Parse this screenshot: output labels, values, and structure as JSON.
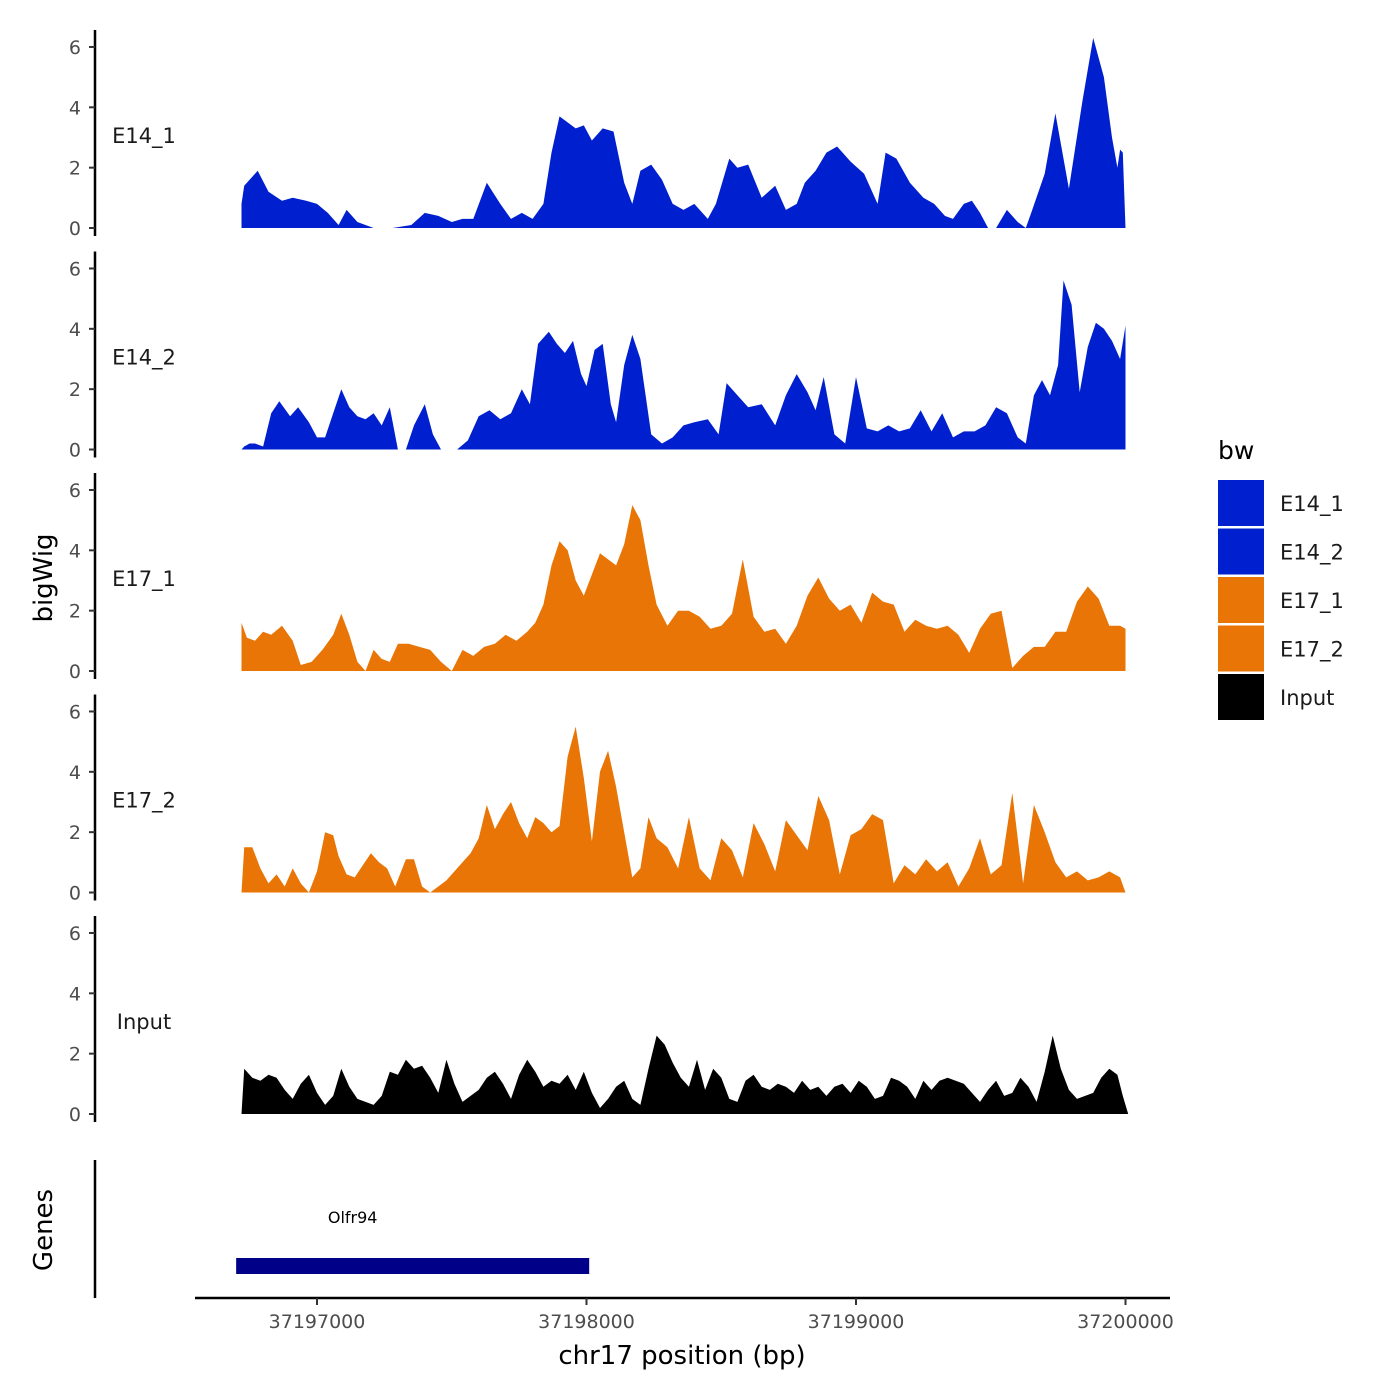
{
  "chart_data": {
    "type": "area",
    "ylabel": "bigWig",
    "xlabel": "chr17 position (bp)",
    "genes_label": "Genes",
    "ylim": [
      0,
      6.5
    ],
    "yticks": [
      0,
      2,
      4,
      6
    ],
    "xlim": [
      37196500,
      37200200
    ],
    "xticks": [
      37197000,
      37198000,
      37199000,
      37200000
    ],
    "xtick_labels": [
      "37197000",
      "37198000",
      "37199000",
      "37200000"
    ],
    "legend": {
      "title": "bw",
      "position": "right",
      "entries": [
        {
          "label": "E14_1",
          "color": "#0020D0"
        },
        {
          "label": "E14_2",
          "color": "#0020D0"
        },
        {
          "label": "E17_1",
          "color": "#E87505"
        },
        {
          "label": "E17_2",
          "color": "#E87505"
        },
        {
          "label": "Input",
          "color": "#000000"
        }
      ]
    },
    "series": [
      {
        "name": "E14_1",
        "color": "#0020D0",
        "x": [
          37196720,
          37196730,
          37196780,
          37196820,
          37196870,
          37196910,
          37196960,
          37197000,
          37197040,
          37197080,
          37197110,
          37197150,
          37197210,
          37197280,
          37197350,
          37197400,
          37197450,
          37197500,
          37197540,
          37197580,
          37197630,
          37197680,
          37197720,
          37197760,
          37197800,
          37197840,
          37197870,
          37197900,
          37197930,
          37197960,
          37197990,
          37198020,
          37198060,
          37198100,
          37198140,
          37198170,
          37198200,
          37198240,
          37198280,
          37198320,
          37198360,
          37198400,
          37198450,
          37198480,
          37198530,
          37198560,
          37198600,
          37198650,
          37198700,
          37198740,
          37198780,
          37198810,
          37198850,
          37198890,
          37198930,
          37198980,
          37199030,
          37199080,
          37199110,
          37199150,
          37199200,
          37199250,
          37199290,
          37199330,
          37199360,
          37199400,
          37199430,
          37199460,
          37199490,
          37199520,
          37199560,
          37199600,
          37199630,
          37199650,
          37199700,
          37199740,
          37199790,
          37199840,
          37199880,
          37199920,
          37199950,
          37199970,
          37199980,
          37199990,
          37200000
        ],
        "values": [
          0.8,
          1.4,
          1.9,
          1.2,
          0.9,
          1.0,
          0.9,
          0.8,
          0.5,
          0.1,
          0.6,
          0.2,
          0.0,
          0.0,
          0.1,
          0.5,
          0.4,
          0.2,
          0.3,
          0.3,
          1.5,
          0.8,
          0.3,
          0.5,
          0.3,
          0.8,
          2.5,
          3.7,
          3.5,
          3.3,
          3.4,
          2.9,
          3.3,
          3.2,
          1.5,
          0.8,
          1.9,
          2.1,
          1.6,
          0.8,
          0.6,
          0.8,
          0.3,
          0.8,
          2.3,
          2.0,
          2.1,
          1.0,
          1.4,
          0.6,
          0.8,
          1.5,
          1.9,
          2.5,
          2.7,
          2.2,
          1.8,
          0.8,
          2.5,
          2.3,
          1.5,
          1.0,
          0.8,
          0.4,
          0.3,
          0.8,
          0.9,
          0.5,
          0.0,
          0.0,
          0.6,
          0.2,
          0.0,
          0.5,
          1.8,
          3.8,
          1.3,
          4.2,
          6.3,
          5.0,
          3.0,
          2.0,
          2.6,
          2.5,
          0.0
        ]
      },
      {
        "name": "E14_2",
        "color": "#0020D0",
        "x": [
          37196720,
          37196730,
          37196750,
          37196770,
          37196800,
          37196830,
          37196860,
          37196900,
          37196930,
          37196970,
          37197000,
          37197030,
          37197060,
          37197090,
          37197120,
          37197150,
          37197180,
          37197210,
          37197240,
          37197270,
          37197300,
          37197330,
          37197360,
          37197400,
          37197430,
          37197460,
          37197490,
          37197520,
          37197560,
          37197600,
          37197640,
          37197680,
          37197720,
          37197760,
          37197790,
          37197820,
          37197860,
          37197890,
          37197920,
          37197950,
          37197980,
          37198000,
          37198030,
          37198060,
          37198090,
          37198110,
          37198140,
          37198170,
          37198200,
          37198240,
          37198280,
          37198320,
          37198360,
          37198400,
          37198450,
          37198490,
          37198520,
          37198560,
          37198600,
          37198650,
          37198700,
          37198740,
          37198780,
          37198820,
          37198850,
          37198880,
          37198920,
          37198960,
          37199000,
          37199040,
          37199080,
          37199120,
          37199160,
          37199200,
          37199240,
          37199280,
          37199320,
          37199360,
          37199400,
          37199440,
          37199480,
          37199520,
          37199560,
          37199600,
          37199630,
          37199660,
          37199690,
          37199720,
          37199750,
          37199770,
          37199800,
          37199830,
          37199860,
          37199890,
          37199920,
          37199950,
          37199980,
          37200000
        ],
        "values": [
          0.0,
          0.1,
          0.2,
          0.2,
          0.1,
          1.2,
          1.6,
          1.1,
          1.4,
          0.9,
          0.4,
          0.4,
          1.2,
          2.0,
          1.4,
          1.1,
          1.0,
          1.2,
          0.8,
          1.4,
          0.0,
          0.0,
          0.8,
          1.5,
          0.5,
          0.0,
          0.0,
          0.0,
          0.3,
          1.1,
          1.3,
          1.0,
          1.2,
          2.0,
          1.5,
          3.5,
          3.9,
          3.5,
          3.2,
          3.6,
          2.5,
          2.1,
          3.3,
          3.5,
          1.5,
          0.9,
          2.8,
          3.8,
          3.0,
          0.5,
          0.2,
          0.4,
          0.8,
          0.9,
          1.0,
          0.5,
          2.2,
          1.8,
          1.4,
          1.5,
          0.8,
          1.8,
          2.5,
          1.9,
          1.3,
          2.4,
          0.5,
          0.2,
          2.4,
          0.7,
          0.6,
          0.8,
          0.6,
          0.7,
          1.3,
          0.6,
          1.2,
          0.4,
          0.6,
          0.6,
          0.8,
          1.4,
          1.2,
          0.4,
          0.2,
          1.8,
          2.3,
          1.8,
          2.8,
          5.6,
          4.8,
          1.9,
          3.4,
          4.2,
          4.0,
          3.6,
          3.0,
          4.1
        ]
      },
      {
        "name": "E17_1",
        "color": "#E87505",
        "x": [
          37196720,
          37196740,
          37196770,
          37196800,
          37196830,
          37196870,
          37196910,
          37196940,
          37196980,
          37197020,
          37197060,
          37197090,
          37197120,
          37197150,
          37197180,
          37197210,
          37197240,
          37197270,
          37197300,
          37197340,
          37197380,
          37197420,
          37197460,
          37197500,
          37197540,
          37197580,
          37197620,
          37197660,
          37197700,
          37197740,
          37197780,
          37197810,
          37197840,
          37197870,
          37197900,
          37197930,
          37197960,
          37197990,
          37198020,
          37198050,
          37198080,
          37198110,
          37198140,
          37198170,
          37198200,
          37198230,
          37198260,
          37198300,
          37198340,
          37198380,
          37198420,
          37198460,
          37198500,
          37198540,
          37198580,
          37198620,
          37198660,
          37198700,
          37198740,
          37198780,
          37198820,
          37198860,
          37198900,
          37198940,
          37198980,
          37199020,
          37199060,
          37199100,
          37199140,
          37199180,
          37199220,
          37199260,
          37199300,
          37199340,
          37199380,
          37199420,
          37199460,
          37199500,
          37199540,
          37199580,
          37199620,
          37199660,
          37199700,
          37199740,
          37199780,
          37199820,
          37199860,
          37199900,
          37199940,
          37199980,
          37200000
        ],
        "values": [
          1.6,
          1.1,
          1.0,
          1.3,
          1.2,
          1.5,
          1.0,
          0.2,
          0.3,
          0.7,
          1.2,
          1.9,
          1.2,
          0.3,
          0.0,
          0.7,
          0.4,
          0.3,
          0.9,
          0.9,
          0.8,
          0.7,
          0.3,
          0.0,
          0.7,
          0.5,
          0.8,
          0.9,
          1.2,
          1.0,
          1.3,
          1.6,
          2.2,
          3.5,
          4.3,
          4.0,
          3.0,
          2.5,
          3.2,
          3.9,
          3.7,
          3.5,
          4.2,
          5.5,
          5.0,
          3.5,
          2.2,
          1.5,
          2.0,
          2.0,
          1.8,
          1.4,
          1.5,
          1.9,
          3.7,
          1.8,
          1.3,
          1.4,
          0.9,
          1.5,
          2.5,
          3.1,
          2.4,
          2.0,
          2.2,
          1.6,
          2.6,
          2.3,
          2.2,
          1.3,
          1.7,
          1.5,
          1.4,
          1.5,
          1.2,
          0.6,
          1.4,
          1.9,
          2.0,
          0.1,
          0.5,
          0.8,
          0.8,
          1.3,
          1.3,
          2.3,
          2.8,
          2.4,
          1.5,
          1.5,
          1.4
        ]
      },
      {
        "name": "E17_2",
        "color": "#E87505",
        "x": [
          37196720,
          37196730,
          37196760,
          37196790,
          37196820,
          37196850,
          37196880,
          37196910,
          37196940,
          37196970,
          37197000,
          37197030,
          37197060,
          37197080,
          37197110,
          37197140,
          37197170,
          37197200,
          37197230,
          37197260,
          37197290,
          37197330,
          37197360,
          37197390,
          37197420,
          37197450,
          37197480,
          37197510,
          37197540,
          37197570,
          37197600,
          37197630,
          37197660,
          37197690,
          37197720,
          37197750,
          37197780,
          37197810,
          37197840,
          37197870,
          37197900,
          37197930,
          37197960,
          37197990,
          37198020,
          37198050,
          37198080,
          37198110,
          37198140,
          37198170,
          37198200,
          37198230,
          37198260,
          37198300,
          37198340,
          37198380,
          37198420,
          37198460,
          37198500,
          37198540,
          37198580,
          37198620,
          37198660,
          37198700,
          37198740,
          37198780,
          37198820,
          37198860,
          37198900,
          37198940,
          37198980,
          37199020,
          37199060,
          37199100,
          37199140,
          37199180,
          37199220,
          37199260,
          37199300,
          37199340,
          37199380,
          37199420,
          37199460,
          37199500,
          37199540,
          37199580,
          37199620,
          37199660,
          37199700,
          37199740,
          37199780,
          37199820,
          37199860,
          37199900,
          37199940,
          37199980,
          37200000
        ],
        "values": [
          0.0,
          1.5,
          1.5,
          0.8,
          0.3,
          0.6,
          0.2,
          0.8,
          0.3,
          0.0,
          0.7,
          2.0,
          1.9,
          1.2,
          0.6,
          0.5,
          0.9,
          1.3,
          1.0,
          0.8,
          0.2,
          1.1,
          1.1,
          0.2,
          0.0,
          0.2,
          0.4,
          0.7,
          1.0,
          1.3,
          1.8,
          2.9,
          2.1,
          2.6,
          3.0,
          2.3,
          1.8,
          2.5,
          2.3,
          2.0,
          2.2,
          4.5,
          5.5,
          3.8,
          1.7,
          4.0,
          4.7,
          3.5,
          2.0,
          0.5,
          0.8,
          2.5,
          1.8,
          1.5,
          0.8,
          2.5,
          0.8,
          0.4,
          1.8,
          1.4,
          0.5,
          2.3,
          1.6,
          0.7,
          2.4,
          1.9,
          1.4,
          3.2,
          2.4,
          0.6,
          1.9,
          2.1,
          2.6,
          2.4,
          0.3,
          0.9,
          0.6,
          1.1,
          0.7,
          1.0,
          0.2,
          0.8,
          1.8,
          0.6,
          0.9,
          3.3,
          0.3,
          2.9,
          2.0,
          1.0,
          0.5,
          0.7,
          0.4,
          0.5,
          0.7,
          0.5,
          0.0
        ]
      },
      {
        "name": "Input",
        "color": "#000000",
        "x": [
          37196720,
          37196730,
          37196760,
          37196790,
          37196820,
          37196850,
          37196880,
          37196910,
          37196940,
          37196970,
          37197000,
          37197030,
          37197060,
          37197090,
          37197120,
          37197150,
          37197180,
          37197210,
          37197240,
          37197270,
          37197300,
          37197330,
          37197360,
          37197390,
          37197420,
          37197450,
          37197480,
          37197510,
          37197540,
          37197570,
          37197600,
          37197630,
          37197660,
          37197690,
          37197720,
          37197750,
          37197780,
          37197810,
          37197840,
          37197870,
          37197900,
          37197930,
          37197960,
          37197990,
          37198020,
          37198050,
          37198080,
          37198110,
          37198140,
          37198170,
          37198200,
          37198230,
          37198260,
          37198290,
          37198320,
          37198350,
          37198380,
          37198410,
          37198440,
          37198470,
          37198500,
          37198530,
          37198560,
          37198590,
          37198620,
          37198650,
          37198680,
          37198710,
          37198740,
          37198770,
          37198800,
          37198830,
          37198860,
          37198890,
          37198920,
          37198950,
          37198980,
          37199010,
          37199040,
          37199070,
          37199100,
          37199130,
          37199160,
          37199190,
          37199220,
          37199250,
          37199280,
          37199310,
          37199340,
          37199370,
          37199400,
          37199430,
          37199460,
          37199490,
          37199520,
          37199550,
          37199580,
          37199610,
          37199640,
          37199670,
          37199700,
          37199730,
          37199760,
          37199790,
          37199820,
          37199850,
          37199880,
          37199910,
          37199940,
          37199970,
          37199990,
          37200010
        ],
        "values": [
          0.0,
          1.5,
          1.2,
          1.1,
          1.3,
          1.2,
          0.8,
          0.5,
          1.0,
          1.3,
          0.7,
          0.3,
          0.6,
          1.5,
          0.9,
          0.5,
          0.4,
          0.3,
          0.6,
          1.4,
          1.3,
          1.8,
          1.5,
          1.6,
          1.2,
          0.7,
          1.8,
          1.0,
          0.4,
          0.6,
          0.8,
          1.2,
          1.4,
          1.0,
          0.5,
          1.3,
          1.8,
          1.4,
          0.9,
          1.1,
          1.0,
          1.3,
          0.8,
          1.4,
          0.7,
          0.2,
          0.5,
          0.9,
          1.1,
          0.5,
          0.3,
          1.5,
          2.6,
          2.3,
          1.7,
          1.2,
          0.9,
          1.8,
          0.8,
          1.5,
          1.2,
          0.5,
          0.4,
          1.1,
          1.3,
          0.9,
          0.8,
          1.0,
          0.9,
          0.7,
          1.1,
          0.8,
          0.9,
          0.6,
          0.9,
          1.0,
          0.7,
          1.1,
          0.9,
          0.5,
          0.6,
          1.2,
          1.1,
          0.9,
          0.5,
          1.1,
          0.8,
          1.1,
          1.2,
          1.1,
          1.0,
          0.7,
          0.4,
          0.8,
          1.1,
          0.6,
          0.7,
          1.2,
          0.9,
          0.4,
          1.4,
          2.6,
          1.5,
          0.8,
          0.5,
          0.6,
          0.7,
          1.2,
          1.5,
          1.3,
          0.6,
          0.0
        ]
      }
    ],
    "genes": [
      {
        "name": "Olfr94",
        "start": 37196700,
        "end": 37198010,
        "color": "#000088"
      }
    ]
  }
}
